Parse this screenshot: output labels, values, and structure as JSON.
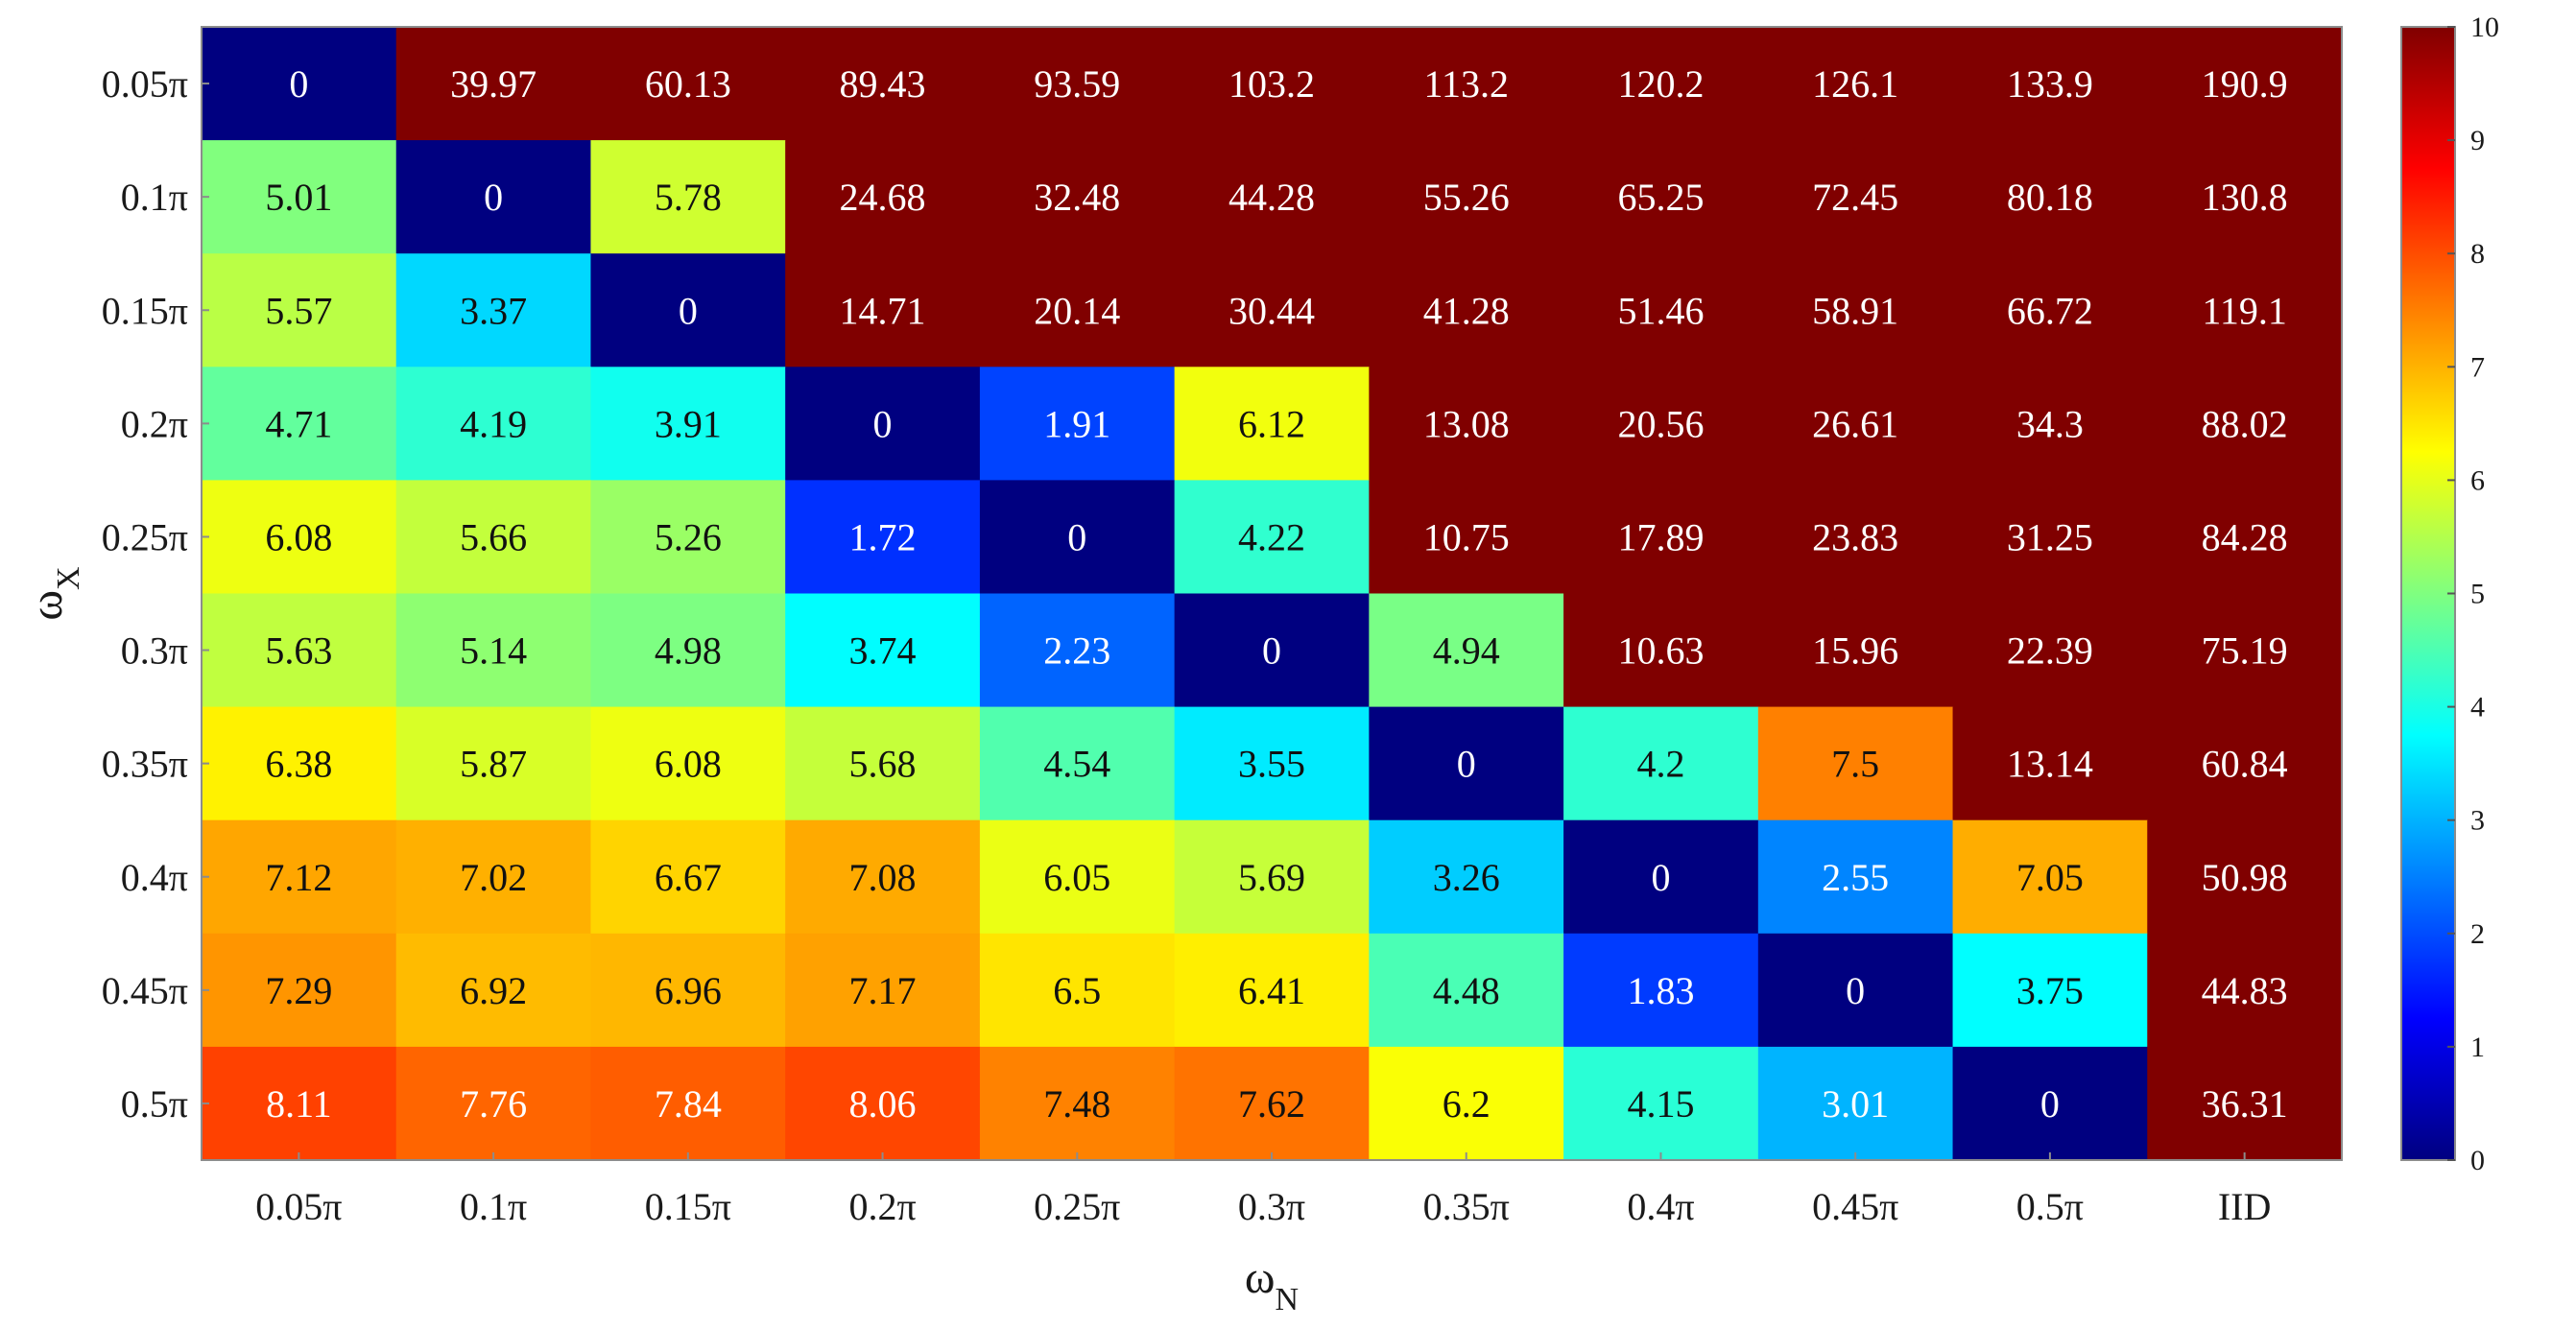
{
  "chart_data": {
    "type": "heatmap",
    "title": "",
    "xlabel": {
      "symbol": "ω",
      "subscript": "N"
    },
    "ylabel": {
      "symbol": "ω",
      "subscript": "X"
    },
    "x_categories": [
      "0.05π",
      "0.1π",
      "0.15π",
      "0.2π",
      "0.25π",
      "0.3π",
      "0.35π",
      "0.4π",
      "0.45π",
      "0.5π",
      "IID"
    ],
    "y_categories": [
      "0.05π",
      "0.1π",
      "0.15π",
      "0.2π",
      "0.25π",
      "0.3π",
      "0.35π",
      "0.4π",
      "0.45π",
      "0.5π"
    ],
    "values": [
      [
        0,
        39.97,
        60.13,
        89.43,
        93.59,
        103.2,
        113.2,
        120.2,
        126.1,
        133.9,
        190.9
      ],
      [
        5.01,
        0,
        5.78,
        24.68,
        32.48,
        44.28,
        55.26,
        65.25,
        72.45,
        80.18,
        130.8
      ],
      [
        5.57,
        3.37,
        0,
        14.71,
        20.14,
        30.44,
        41.28,
        51.46,
        58.91,
        66.72,
        119.1
      ],
      [
        4.71,
        4.19,
        3.91,
        0,
        1.91,
        6.12,
        13.08,
        20.56,
        26.61,
        34.3,
        88.02
      ],
      [
        6.08,
        5.66,
        5.26,
        1.72,
        0,
        4.22,
        10.75,
        17.89,
        23.83,
        31.25,
        84.28
      ],
      [
        5.63,
        5.14,
        4.98,
        3.74,
        2.23,
        0,
        4.94,
        10.63,
        15.96,
        22.39,
        75.19
      ],
      [
        6.38,
        5.87,
        6.08,
        5.68,
        4.54,
        3.55,
        0,
        4.2,
        7.5,
        13.14,
        60.84
      ],
      [
        7.12,
        7.02,
        6.67,
        7.08,
        6.05,
        5.69,
        3.26,
        0,
        2.55,
        7.05,
        50.98
      ],
      [
        7.29,
        6.92,
        6.96,
        7.17,
        6.5,
        6.41,
        4.48,
        1.83,
        0,
        3.75,
        44.83
      ],
      [
        8.11,
        7.76,
        7.84,
        8.06,
        7.48,
        7.62,
        6.2,
        4.15,
        3.01,
        0,
        36.31
      ]
    ],
    "value_labels": [
      [
        "0",
        "39.97",
        "60.13",
        "89.43",
        "93.59",
        "103.2",
        "113.2",
        "120.2",
        "126.1",
        "133.9",
        "190.9"
      ],
      [
        "5.01",
        "0",
        "5.78",
        "24.68",
        "32.48",
        "44.28",
        "55.26",
        "65.25",
        "72.45",
        "80.18",
        "130.8"
      ],
      [
        "5.57",
        "3.37",
        "0",
        "14.71",
        "20.14",
        "30.44",
        "41.28",
        "51.46",
        "58.91",
        "66.72",
        "119.1"
      ],
      [
        "4.71",
        "4.19",
        "3.91",
        "0",
        "1.91",
        "6.12",
        "13.08",
        "20.56",
        "26.61",
        "34.3",
        "88.02"
      ],
      [
        "6.08",
        "5.66",
        "5.26",
        "1.72",
        "0",
        "4.22",
        "10.75",
        "17.89",
        "23.83",
        "31.25",
        "84.28"
      ],
      [
        "5.63",
        "5.14",
        "4.98",
        "3.74",
        "2.23",
        "0",
        "4.94",
        "10.63",
        "15.96",
        "22.39",
        "75.19"
      ],
      [
        "6.38",
        "5.87",
        "6.08",
        "5.68",
        "4.54",
        "3.55",
        "0",
        "4.2",
        "7.5",
        "13.14",
        "60.84"
      ],
      [
        "7.12",
        "7.02",
        "6.67",
        "7.08",
        "6.05",
        "5.69",
        "3.26",
        "0",
        "2.55",
        "7.05",
        "50.98"
      ],
      [
        "7.29",
        "6.92",
        "6.96",
        "7.17",
        "6.5",
        "6.41",
        "4.48",
        "1.83",
        "0",
        "3.75",
        "44.83"
      ],
      [
        "8.11",
        "7.76",
        "7.84",
        "8.06",
        "7.48",
        "7.62",
        "6.2",
        "4.15",
        "3.01",
        "0",
        "36.31"
      ]
    ],
    "colorbar": {
      "range": [
        0,
        10
      ],
      "ticks": [
        "0",
        "1",
        "2",
        "3",
        "4",
        "5",
        "6",
        "7",
        "8",
        "9",
        "10"
      ],
      "colormap": "jet",
      "clipped_above": true
    },
    "grid": false
  }
}
